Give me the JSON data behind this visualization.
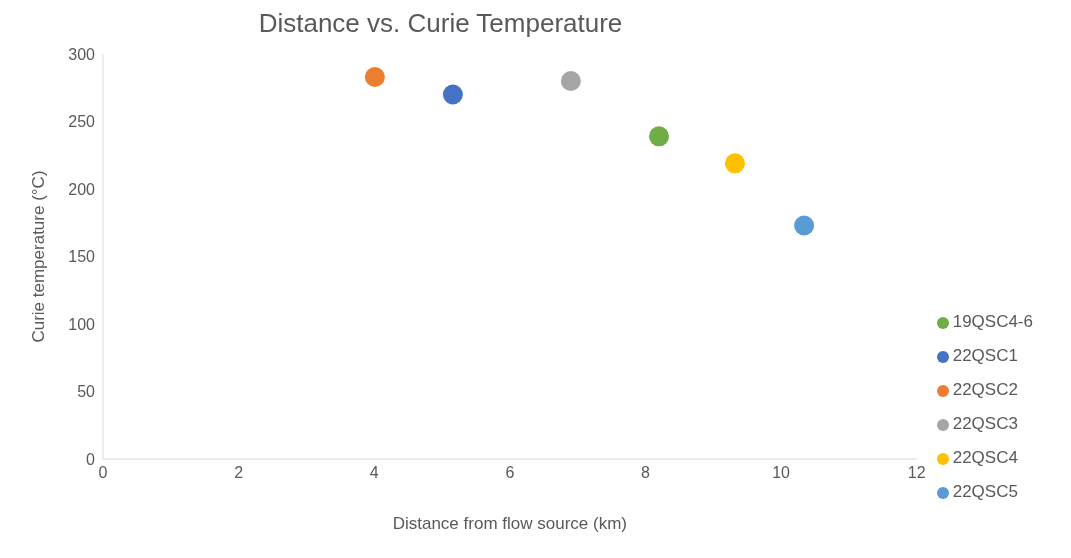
{
  "chart_data": {
    "type": "scatter",
    "title": "Distance vs. Curie Temperature",
    "xlabel": "Distance from flow source (km)",
    "ylabel": "Curie temperature  (°C)",
    "xlim": [
      0,
      12
    ],
    "xticks": [
      0,
      2,
      4,
      6,
      8,
      10,
      12
    ],
    "ylim": [
      0,
      300
    ],
    "yticks": [
      0,
      50,
      100,
      150,
      200,
      250,
      300
    ],
    "grid": false,
    "legend": "right",
    "marker": "circle",
    "series": [
      {
        "name": "22QSC1",
        "color": "#4472c4",
        "x": [
          5.16
        ],
        "values": [
          270
        ]
      },
      {
        "name": "22QSC2",
        "color": "#ed7d31",
        "x": [
          4.01
        ],
        "values": [
          283
        ]
      },
      {
        "name": "22QSC3",
        "color": "#a5a5a5",
        "x": [
          6.9
        ],
        "values": [
          280
        ]
      },
      {
        "name": "19QSC4-6",
        "color": "#70ad47",
        "x": [
          8.2
        ],
        "values": [
          239
        ]
      },
      {
        "name": "22QSC4",
        "color": "#ffc000",
        "x": [
          9.32
        ],
        "values": [
          219
        ]
      },
      {
        "name": "22QSC5",
        "color": "#5b9bd5",
        "x": [
          10.34
        ],
        "values": [
          173
        ]
      }
    ]
  }
}
